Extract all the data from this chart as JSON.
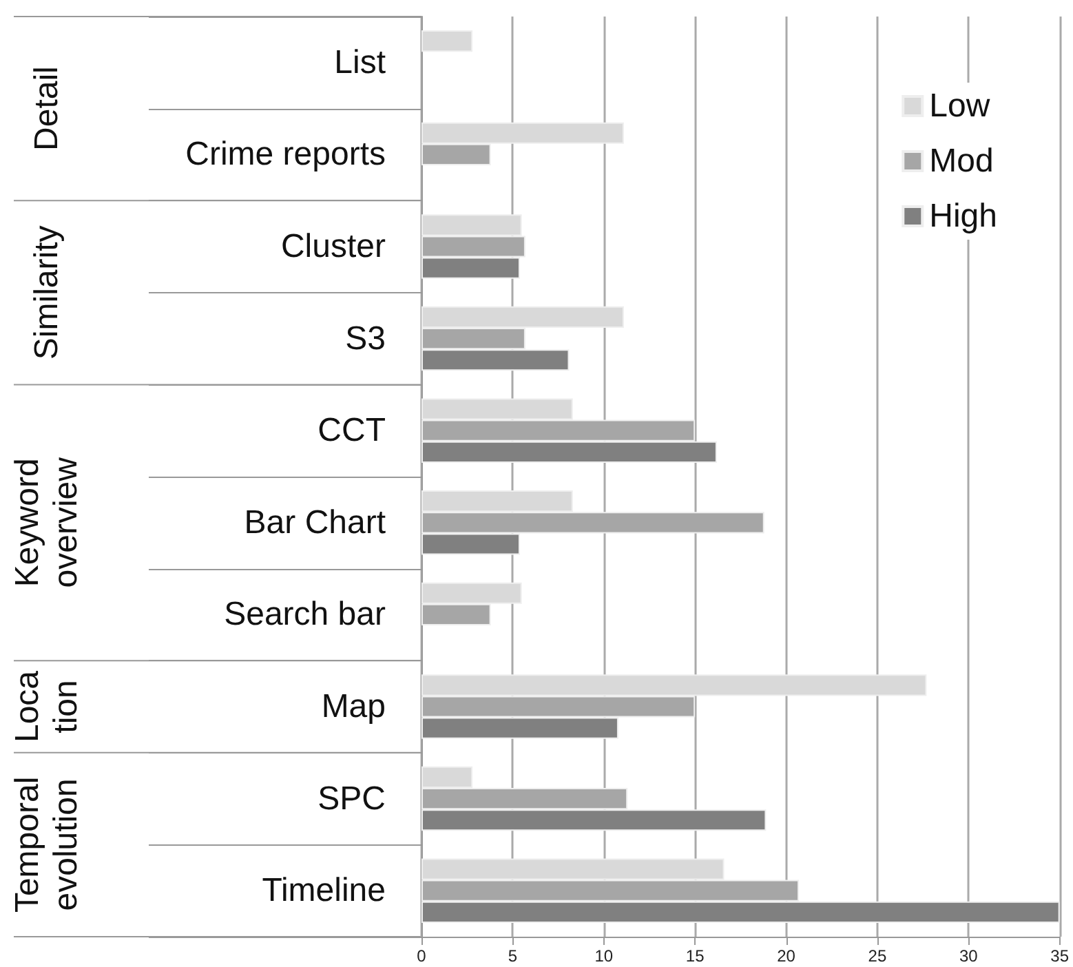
{
  "chart_data": {
    "type": "bar",
    "orientation": "horizontal",
    "categories": [
      "List",
      "Crime reports",
      "Cluster",
      "S3",
      "CCT",
      "Bar Chart",
      "Search bar",
      "Map",
      "SPC",
      "Timeline"
    ],
    "series": [
      {
        "name": "Low",
        "color": "#d9d9d9",
        "values": [
          2.8,
          11.1,
          5.5,
          11.1,
          8.3,
          8.3,
          5.5,
          27.7,
          2.8,
          16.6
        ]
      },
      {
        "name": "Mod",
        "color": "#a6a6a6",
        "values": [
          null,
          3.8,
          5.7,
          5.7,
          15.0,
          18.8,
          3.8,
          15.0,
          11.3,
          20.7
        ]
      },
      {
        "name": "High",
        "color": "#808080",
        "values": [
          null,
          null,
          5.4,
          8.1,
          16.2,
          5.4,
          null,
          10.8,
          18.9,
          35
        ]
      }
    ],
    "xlim": [
      0,
      35
    ],
    "xticks": [
      0,
      5,
      10,
      15,
      20,
      25,
      30,
      35
    ],
    "grid": "x",
    "legend": "top right",
    "annotations": [
      "Detail",
      "Similarity",
      "Keyword overview",
      "Loca tion",
      "Temporal evolution"
    ]
  }
}
